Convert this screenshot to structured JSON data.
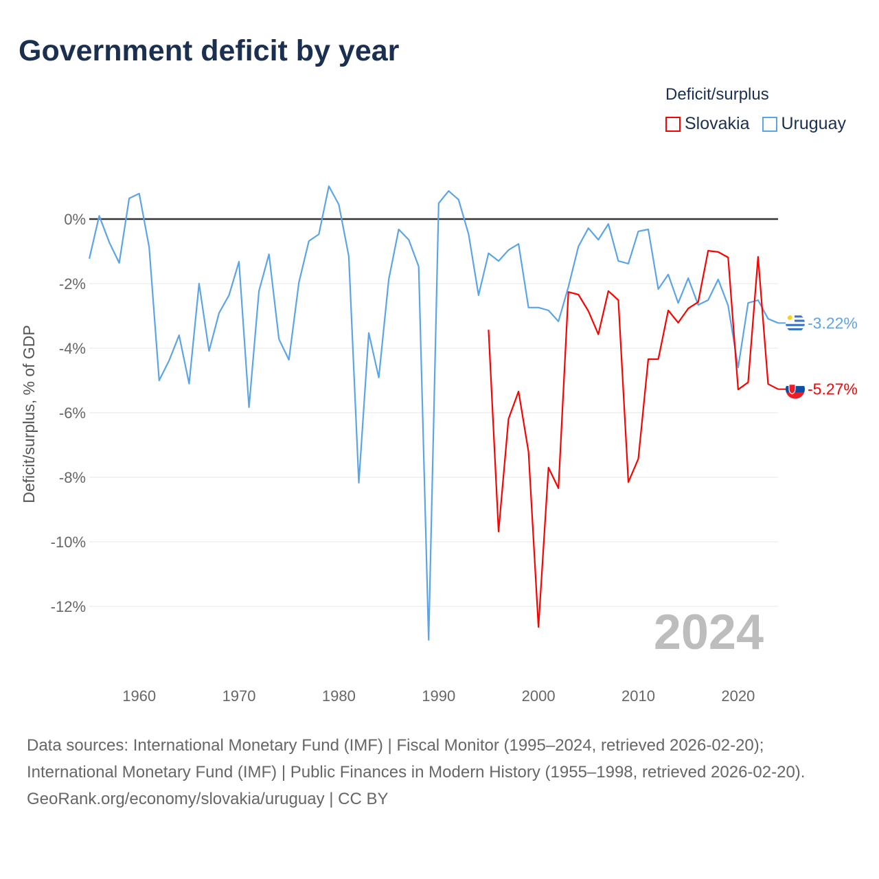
{
  "title": "Government deficit by year",
  "legend": {
    "title": "Deficit/surplus",
    "items": [
      {
        "label": "Slovakia",
        "color": "#ff0000"
      },
      {
        "label": "Uruguay",
        "color": "#5ba4e8"
      }
    ]
  },
  "footer": {
    "sources": "Data sources: International Monetary Fund (IMF) | Fiscal Monitor (1995–2024, retrieved 2026-02-20); International Monetary Fund (IMF) | Public Finances in Modern History (1955–1998, retrieved 2026-02-20).",
    "credit": "GeoRank.org/economy/slovakia/uruguay | CC BY"
  },
  "chart_data": {
    "type": "line",
    "title": "Government deficit by year",
    "ylabel": "Deficit/surplus, % of GDP",
    "xlabel": "",
    "xlim": [
      1955,
      2024
    ],
    "ylim": [
      -13.5,
      1.5
    ],
    "x_ticks": [
      "1960",
      "1970",
      "1980",
      "1990",
      "2000",
      "2010",
      "2020"
    ],
    "y_ticks": [
      {
        "v": 0,
        "label": "0%"
      },
      {
        "v": -2,
        "label": "-2%"
      },
      {
        "v": -4,
        "label": "-4%"
      },
      {
        "v": -6,
        "label": "-6%"
      },
      {
        "v": -8,
        "label": "-8%"
      },
      {
        "v": -10,
        "label": "-10%"
      },
      {
        "v": -12,
        "label": "-12%"
      }
    ],
    "year_watermark": "2024",
    "series": [
      {
        "name": "Uruguay",
        "color": "#5ba4e8",
        "start": 1955,
        "end_label": "-3.22%",
        "values": [
          -1.23,
          0.1,
          -0.72,
          -1.36,
          0.64,
          0.79,
          -0.87,
          -5.0,
          -4.38,
          -3.6,
          -5.1,
          -2.0,
          -4.09,
          -2.91,
          -2.36,
          -1.32,
          -5.83,
          -2.23,
          -1.09,
          -3.72,
          -4.36,
          -1.96,
          -0.68,
          -0.47,
          1.02,
          0.45,
          -1.15,
          -8.17,
          -3.53,
          -4.91,
          -1.87,
          -0.32,
          -0.64,
          -1.47,
          -13.04,
          0.49,
          0.87,
          0.6,
          -0.47,
          -2.36,
          -1.06,
          -1.3,
          -0.96,
          -0.77,
          -2.74,
          -2.74,
          -2.83,
          -3.17,
          -2.1,
          -0.85,
          -0.28,
          -0.64,
          -0.15,
          -1.3,
          -1.38,
          -0.38,
          -0.32,
          -2.17,
          -1.72,
          -2.6,
          -1.83,
          -2.66,
          -2.51,
          -1.87,
          -2.68,
          -4.6,
          -2.6,
          -2.51,
          -3.09,
          -3.22
        ]
      },
      {
        "name": "Slovakia",
        "color": "#ff0000",
        "start": 1995,
        "end_label": "-5.27%",
        "values": [
          -3.43,
          -9.68,
          -6.19,
          -5.34,
          -7.21,
          -12.64,
          -7.7,
          -8.34,
          -2.26,
          -2.34,
          -2.85,
          -3.57,
          -2.23,
          -2.51,
          -8.15,
          -7.43,
          -4.34,
          -4.34,
          -2.83,
          -3.21,
          -2.77,
          -2.57,
          -0.98,
          -1.02,
          -1.19,
          -5.28,
          -5.06,
          -1.17,
          -5.11,
          -5.27
        ]
      }
    ]
  }
}
